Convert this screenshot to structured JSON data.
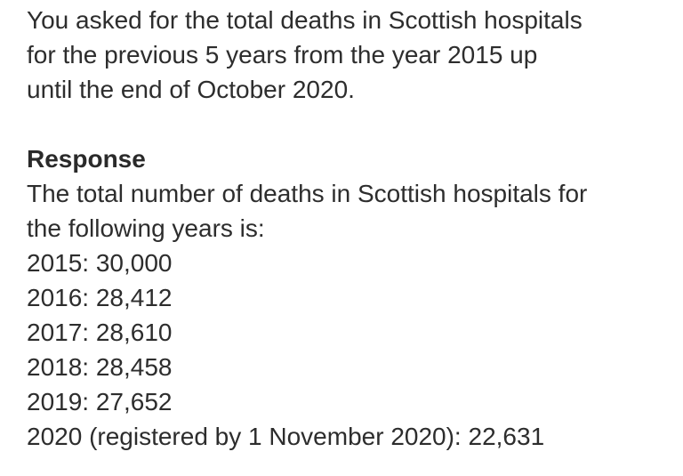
{
  "document": {
    "background_color": "#ffffff",
    "text_color": "#2d2d2d"
  },
  "request": {
    "lines": [
      "You asked for the total deaths in Scottish hospitals",
      "for the previous 5 years from the year 2015 up",
      "until the end of October 2020."
    ]
  },
  "response": {
    "heading": "Response",
    "intro_lines": [
      "The total number of deaths in Scottish hospitals for",
      "the following years is:"
    ],
    "yearly_deaths": [
      {
        "year": "2015",
        "deaths": "30,000",
        "text": "2015: 30,000"
      },
      {
        "year": "2016",
        "deaths": "28,412",
        "text": "2016: 28,412"
      },
      {
        "year": "2017",
        "deaths": "28,610",
        "text": "2017: 28,610"
      },
      {
        "year": "2018",
        "deaths": "28,458",
        "text": "2018: 28,458"
      },
      {
        "year": "2019",
        "deaths": "27,652",
        "text": "2019: 27,652"
      },
      {
        "year": "2020",
        "deaths": "22,631",
        "note": "registered by 1 November 2020",
        "text": "2020 (registered by 1 November 2020): 22,631"
      }
    ]
  }
}
